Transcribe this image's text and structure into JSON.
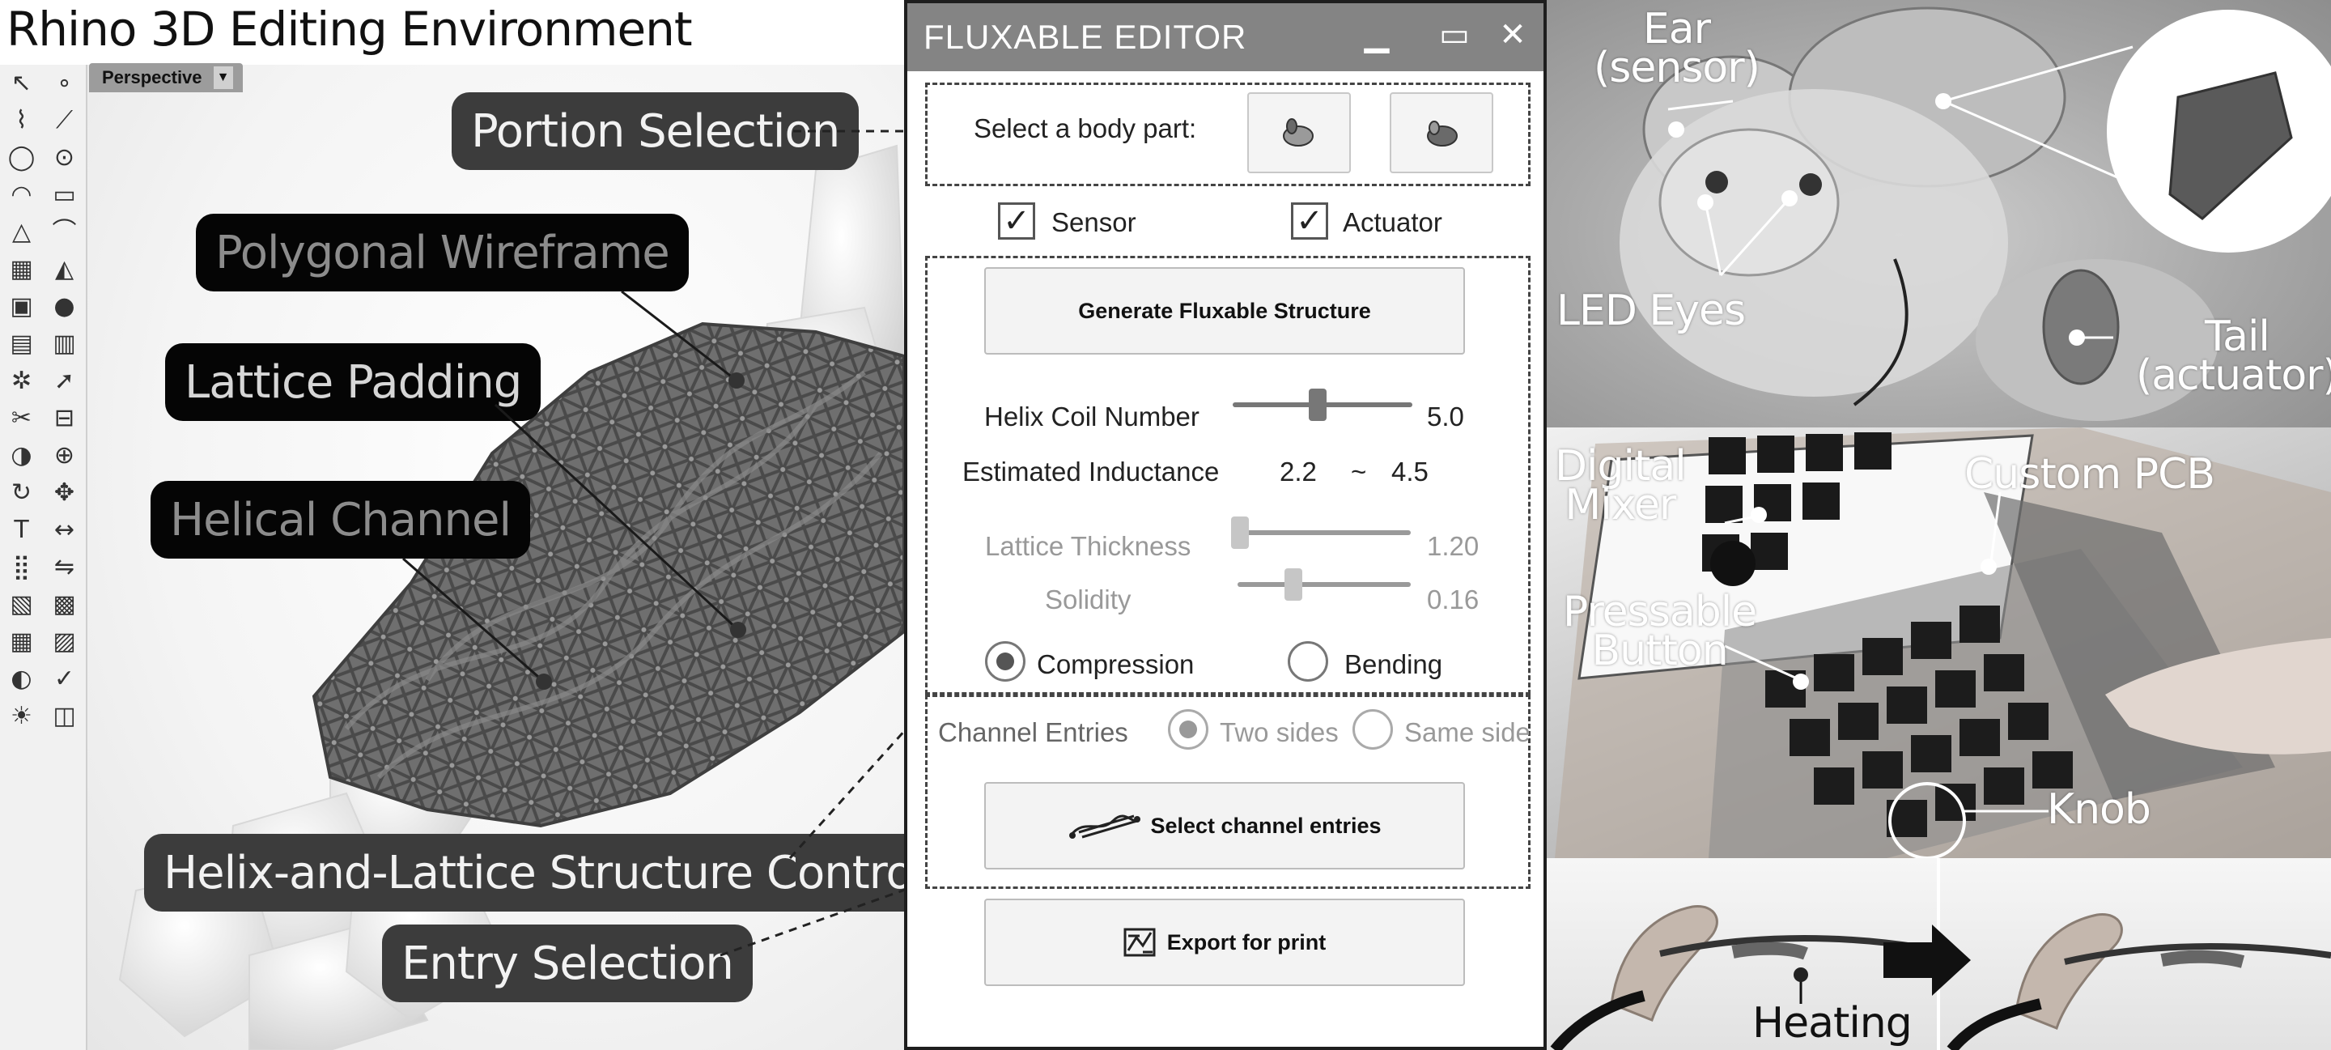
{
  "rhino": {
    "title": "Rhino 3D Editing Environment",
    "viewport_tab": "Perspective",
    "toolbar_icons": [
      "select-icon",
      "point-icon",
      "polyline-icon",
      "curve-icon",
      "circle-icon",
      "ellipse-icon",
      "arc-icon",
      "rectangle-icon",
      "polygon-icon",
      "fillet-icon",
      "surface-icon",
      "loft-icon",
      "box-icon",
      "sphere-icon",
      "cylinder-icon",
      "extrude-icon",
      "gear-icon",
      "arrow-icon",
      "trim-icon",
      "split-icon",
      "boolean-icon",
      "group-icon",
      "rotate-icon",
      "move-icon",
      "text-icon",
      "dimension-icon",
      "array-icon",
      "mirror-icon",
      "block-icon",
      "hatch-icon",
      "grid-icon",
      "layer-icon",
      "render-icon",
      "check-icon",
      "light-icon",
      "camera-icon"
    ],
    "callouts": {
      "portion_selection": "Portion Selection",
      "polygonal_wireframe": "Polygonal Wireframe",
      "lattice_padding": "Lattice Padding",
      "helical_channel": "Helical Channel",
      "structure_control": "Helix-and-Lattice Structure Control",
      "entry_selection": "Entry Selection"
    }
  },
  "editor": {
    "title": "FLUXABLE EDITOR",
    "window_controls": {
      "minimize": "▁",
      "maximize": "▭",
      "close": "✕"
    },
    "body_part_label": "Select a body part:",
    "sensor_label": "Sensor",
    "actuator_label": "Actuator",
    "sensor_checked": true,
    "actuator_checked": true,
    "generate_button": "Generate Fluxable Structure",
    "helix_coil_label": "Helix Coil Number",
    "helix_coil_value": "5.0",
    "helix_coil_fraction": 0.47,
    "inductance_label": "Estimated Inductance",
    "inductance_min": "2.2",
    "inductance_sep": "~",
    "inductance_max": "4.5",
    "lattice_thickness_label": "Lattice Thickness",
    "lattice_thickness_value": "1.20",
    "lattice_thickness_fraction": 0.0,
    "solidity_label": "Solidity",
    "solidity_value": "0.16",
    "solidity_fraction": 0.3,
    "mode_compression": "Compression",
    "mode_bending": "Bending",
    "mode_selected": "Compression",
    "channel_entries_label": "Channel Entries",
    "entry_two_sides": "Two sides",
    "entry_same_side": "Same side",
    "entry_selected": "Two sides",
    "select_entries_button": "Select channel entries",
    "export_button": "Export for print"
  },
  "photos": {
    "top": {
      "ear": "Ear\n(sensor)",
      "led_eyes": "LED Eyes",
      "tail": "Tail\n(actuator)"
    },
    "middle": {
      "digital_mixer": "Digital\nMixer",
      "custom_pcb": "Custom PCB",
      "pressable_button": "Pressable\nButton",
      "knob": "Knob"
    },
    "bottom": {
      "heating": "Heating"
    }
  }
}
